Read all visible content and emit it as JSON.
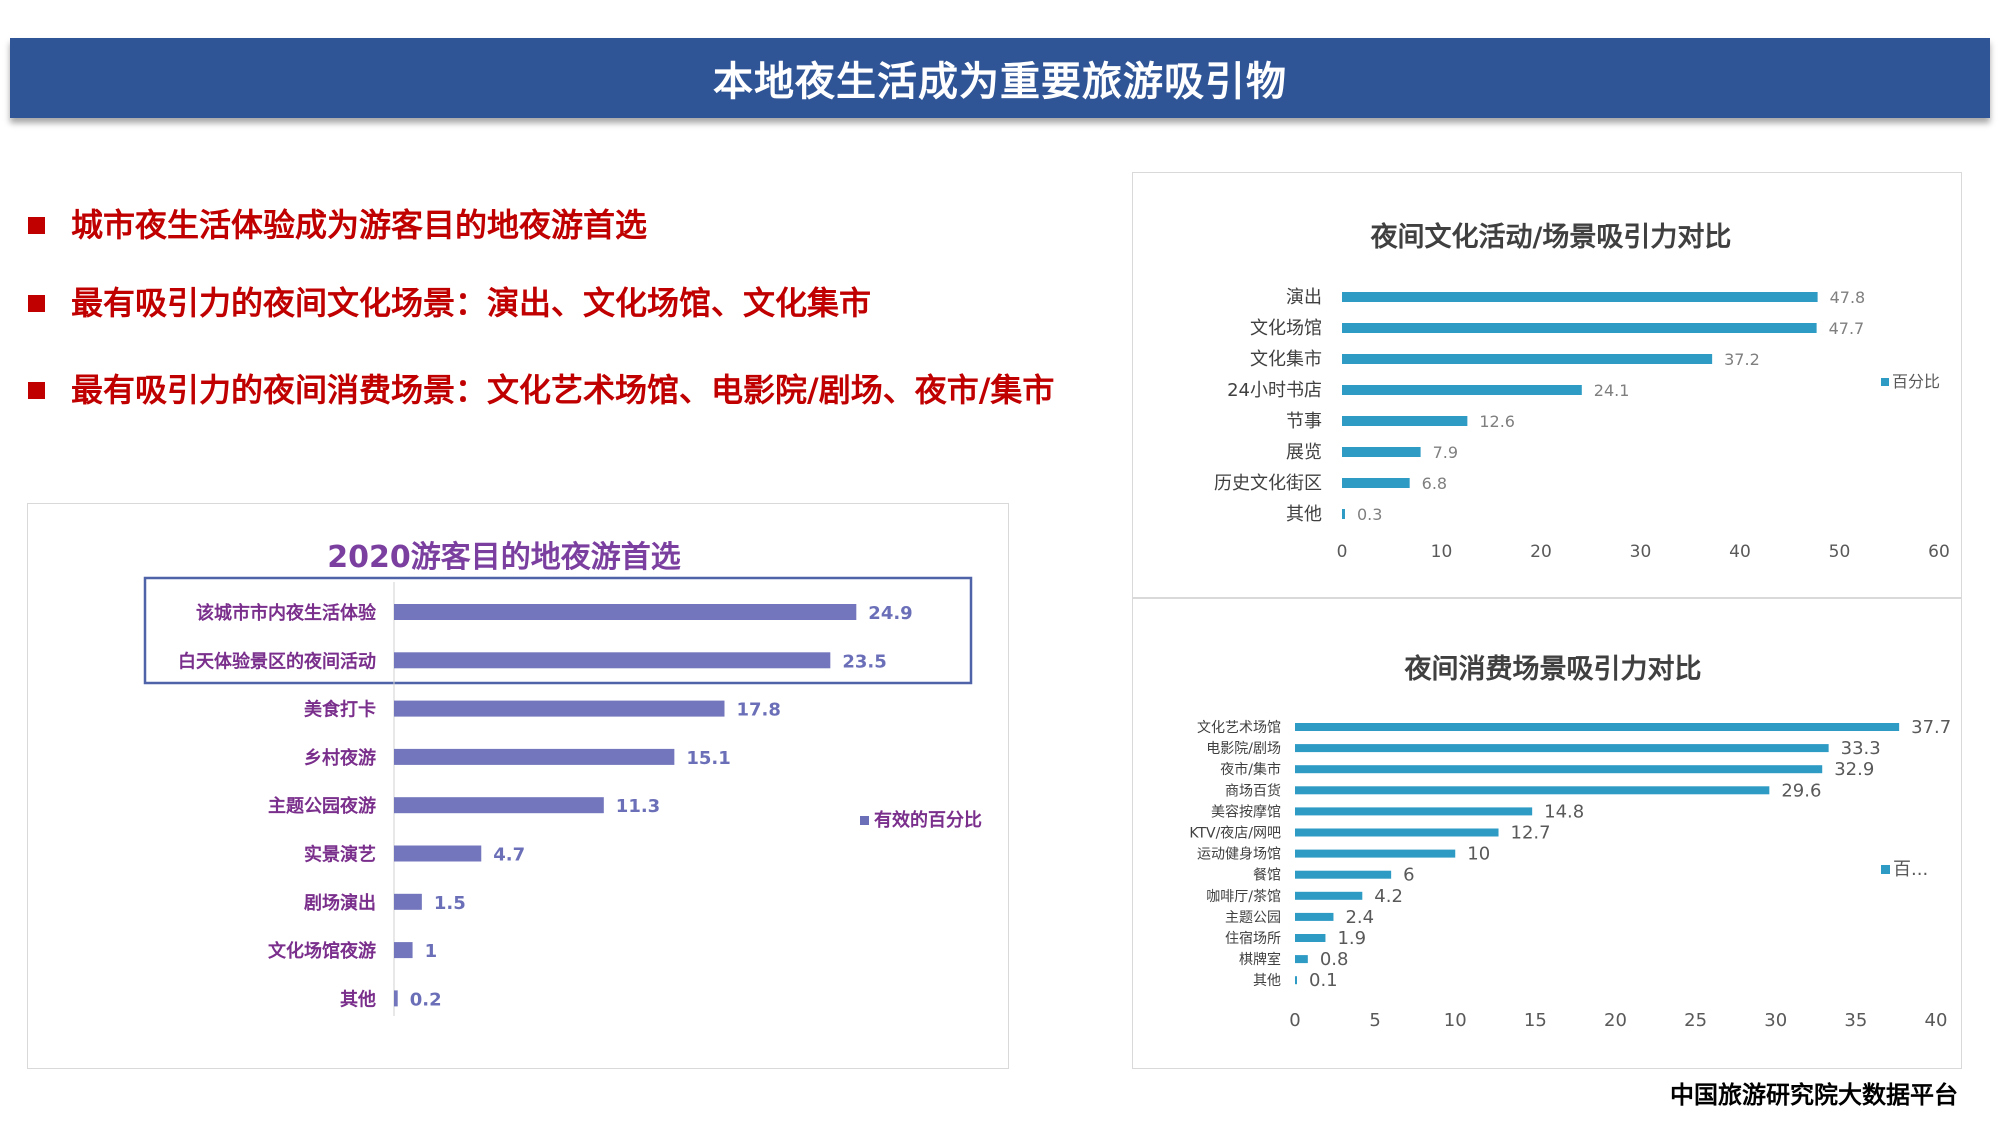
{
  "page": {
    "title": "本地夜生活成为重要旅游吸引物",
    "source": "中国旅游研究院大数据平台"
  },
  "bullets": [
    "城市夜生活体验成为游客目的地夜游首选",
    "最有吸引力的夜间文化场景：演出、文化场馆、文化集市",
    "最有吸引力的夜间消费场景：文化艺术场馆、电影院/剧场、夜市/集市"
  ],
  "colors": {
    "banner": "#2f5597",
    "bullet_red": "#c00000",
    "bar_purple": "#6b6fb8",
    "bar_teal": "#2e9bc4",
    "title_purple": "#7b3fa0",
    "label_purple": "#7a2f8c",
    "highlight_box": "#4f63a8"
  },
  "chart_data": [
    {
      "id": "left",
      "type": "bar",
      "orientation": "horizontal",
      "title": "2020游客目的地夜游首选",
      "categories": [
        "该城市市内夜生活体验",
        "白天体验景区的夜间活动",
        "美食打卡",
        "乡村夜游",
        "主题公园夜游",
        "实景演艺",
        "剧场演出",
        "文化场馆夜游",
        "其他"
      ],
      "series": [
        {
          "name": "有效的百分比",
          "values": [
            24.9,
            23.5,
            17.8,
            15.1,
            11.3,
            4.7,
            1.5,
            1,
            0.2
          ]
        }
      ],
      "highlighted_categories": [
        "该城市市内夜生活体验",
        "白天体验景区的夜间活动"
      ],
      "xlim": [
        0,
        30
      ],
      "grid": false,
      "legend": "right"
    },
    {
      "id": "right_top",
      "type": "bar",
      "orientation": "horizontal",
      "title": "夜间文化活动/场景吸引力对比",
      "categories": [
        "演出",
        "文化场馆",
        "文化集市",
        "24小时书店",
        "节事",
        "展览",
        "历史文化街区",
        "其他"
      ],
      "series": [
        {
          "name": "百分比",
          "values": [
            47.8,
            47.7,
            37.2,
            24.1,
            12.6,
            7.9,
            6.8,
            0.3
          ]
        }
      ],
      "xticks": [
        "0",
        "10",
        "20",
        "30",
        "40",
        "50",
        "60"
      ],
      "xlim": [
        0,
        60
      ],
      "grid": false,
      "legend": "right"
    },
    {
      "id": "right_bottom",
      "type": "bar",
      "orientation": "horizontal",
      "title": "夜间消费场景吸引力对比",
      "categories": [
        "文化艺术场馆",
        "电影院/剧场",
        "夜市/集市",
        "商场百货",
        "美容按摩馆",
        "KTV/夜店/网吧",
        "运动健身场馆",
        "餐馆",
        "咖啡厅/茶馆",
        "主题公园",
        "住宿场所",
        "棋牌室",
        "其他"
      ],
      "series": [
        {
          "name": "百...",
          "values": [
            37.7,
            33.3,
            32.9,
            29.6,
            14.8,
            12.7,
            10,
            6,
            4.2,
            2.4,
            1.9,
            0.8,
            0.1
          ]
        }
      ],
      "xticks": [
        "0",
        "5",
        "10",
        "15",
        "20",
        "25",
        "30",
        "35",
        "40"
      ],
      "xlim": [
        0,
        40
      ],
      "grid": false,
      "legend": "right"
    }
  ]
}
